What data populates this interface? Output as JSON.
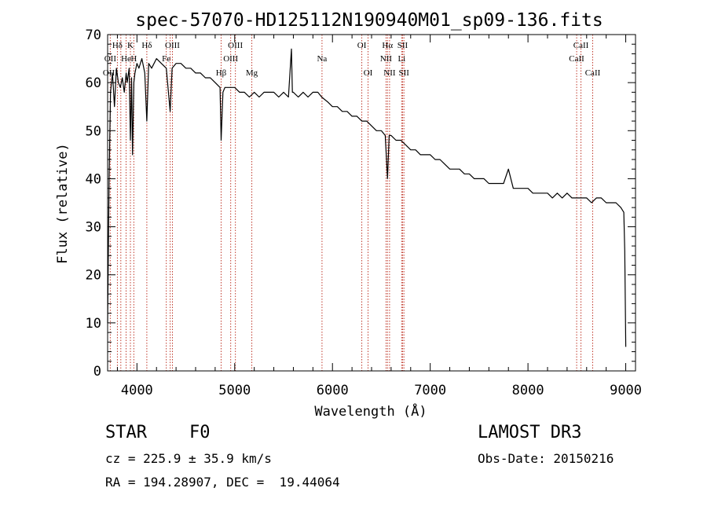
{
  "chart_data": {
    "type": "line",
    "title": "spec-57070-HD125112N190940M01_sp09-136.fits",
    "xlabel": "Wavelength (Å)",
    "ylabel": "Flux (relative)",
    "xlim": [
      3700,
      9100
    ],
    "ylim": [
      0,
      70
    ],
    "xticks": [
      4000,
      5000,
      6000,
      7000,
      8000,
      9000
    ],
    "yticks": [
      0,
      10,
      20,
      30,
      40,
      50,
      60,
      70
    ],
    "grid": false,
    "series": [
      {
        "name": "spectrum",
        "color": "#000000",
        "x": [
          3700,
          3715,
          3730,
          3750,
          3770,
          3790,
          3810,
          3830,
          3850,
          3870,
          3890,
          3900,
          3920,
          3933,
          3945,
          3955,
          3968,
          3980,
          4000,
          4020,
          4050,
          4080,
          4101,
          4120,
          4150,
          4200,
          4250,
          4300,
          4340,
          4360,
          4400,
          4450,
          4500,
          4550,
          4600,
          4650,
          4700,
          4750,
          4800,
          4850,
          4861,
          4880,
          4900,
          4950,
          5000,
          5050,
          5100,
          5150,
          5200,
          5250,
          5300,
          5350,
          5400,
          5450,
          5500,
          5550,
          5580,
          5590,
          5600,
          5650,
          5700,
          5750,
          5800,
          5850,
          5890,
          5950,
          6000,
          6050,
          6100,
          6150,
          6200,
          6250,
          6300,
          6350,
          6400,
          6450,
          6500,
          6540,
          6563,
          6580,
          6600,
          6650,
          6700,
          6750,
          6800,
          6850,
          6900,
          6950,
          7000,
          7050,
          7100,
          7150,
          7200,
          7250,
          7300,
          7350,
          7400,
          7450,
          7500,
          7550,
          7600,
          7650,
          7700,
          7750,
          7800,
          7850,
          7900,
          7950,
          8000,
          8050,
          8100,
          8150,
          8200,
          8250,
          8300,
          8350,
          8400,
          8450,
          8500,
          8550,
          8600,
          8650,
          8700,
          8750,
          8800,
          8850,
          8900,
          8950,
          8980,
          8990,
          9000
        ],
        "values": [
          10,
          40,
          58,
          62,
          55,
          63,
          60,
          59,
          61,
          58,
          62,
          60,
          63,
          48,
          61,
          45,
          60,
          62,
          64,
          63,
          65,
          62,
          52,
          64,
          63,
          65,
          64,
          63,
          54,
          63,
          64,
          64,
          63,
          63,
          62,
          62,
          61,
          61,
          60,
          59,
          48,
          58,
          59,
          59,
          59,
          58,
          58,
          57,
          58,
          57,
          58,
          58,
          58,
          57,
          58,
          57,
          67,
          58,
          58,
          57,
          58,
          57,
          58,
          58,
          57,
          56,
          55,
          55,
          54,
          54,
          53,
          53,
          52,
          52,
          51,
          50,
          50,
          49,
          40,
          49,
          49,
          48,
          48,
          47,
          46,
          46,
          45,
          45,
          45,
          44,
          44,
          43,
          42,
          42,
          42,
          41,
          41,
          40,
          40,
          40,
          39,
          39,
          39,
          39,
          42,
          38,
          38,
          38,
          38,
          37,
          37,
          37,
          37,
          36,
          37,
          36,
          37,
          36,
          36,
          36,
          36,
          35,
          36,
          36,
          35,
          35,
          35,
          34,
          33,
          25,
          5
        ]
      }
    ],
    "annotations": [
      {
        "text": "Hδ",
        "x": 3800,
        "row": 1
      },
      {
        "text": "K",
        "x": 3933,
        "row": 1
      },
      {
        "text": "Hδ",
        "x": 4101,
        "row": 1
      },
      {
        "text": "OIII",
        "x": 4363,
        "row": 1
      },
      {
        "text": "OIII",
        "x": 5007,
        "row": 1
      },
      {
        "text": "OI",
        "x": 6300,
        "row": 1
      },
      {
        "text": "Hα",
        "x": 6563,
        "row": 1
      },
      {
        "text": "SII",
        "x": 6717,
        "row": 1
      },
      {
        "text": "CaII",
        "x": 8542,
        "row": 1
      },
      {
        "text": "OII",
        "x": 3727,
        "row": 2
      },
      {
        "text": "He",
        "x": 3889,
        "row": 2
      },
      {
        "text": "H",
        "x": 3968,
        "row": 2
      },
      {
        "text": "Fe",
        "x": 4300,
        "row": 2
      },
      {
        "text": "OIII",
        "x": 4959,
        "row": 2
      },
      {
        "text": "Na",
        "x": 5893,
        "row": 2
      },
      {
        "text": "NII",
        "x": 6548,
        "row": 2
      },
      {
        "text": "Li",
        "x": 6708,
        "row": 2
      },
      {
        "text": "CaII",
        "x": 8498,
        "row": 2
      },
      {
        "text": "OIII",
        "x": 3727,
        "row": 3
      },
      {
        "text": "Hβ",
        "x": 4861,
        "row": 3
      },
      {
        "text": "Mg",
        "x": 5175,
        "row": 3
      },
      {
        "text": "OI",
        "x": 6364,
        "row": 3
      },
      {
        "text": "NII",
        "x": 6584,
        "row": 3
      },
      {
        "text": "SII",
        "x": 6731,
        "row": 3
      },
      {
        "text": "CaII",
        "x": 8662,
        "row": 3
      }
    ],
    "line_markers": [
      3727,
      3800,
      3835,
      3889,
      3933,
      3968,
      4101,
      4300,
      4340,
      4363,
      4861,
      4959,
      5007,
      5175,
      5893,
      6300,
      6364,
      6548,
      6563,
      6584,
      6708,
      6717,
      6731,
      8498,
      8542,
      8662
    ],
    "line_marker_color": "#c0392b"
  },
  "info": {
    "class": "STAR",
    "subclass": "F0",
    "survey": "LAMOST DR3",
    "cz": "cz = 225.9 ± 35.9 km/s",
    "obs_date": "Obs-Date: 20150216",
    "radec": "RA = 194.28907, DEC =  19.44064"
  }
}
